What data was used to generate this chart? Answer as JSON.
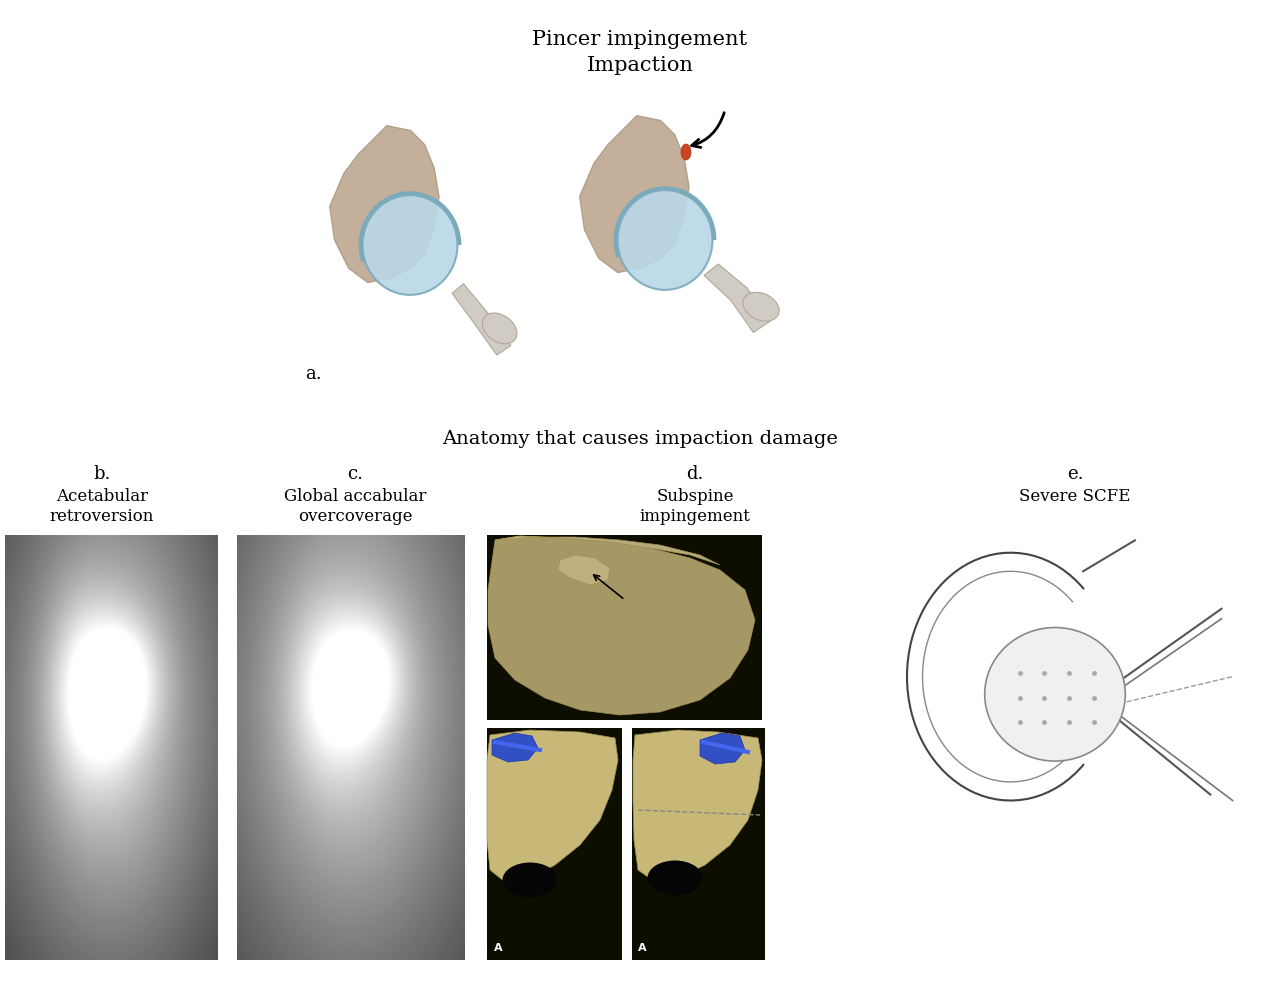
{
  "title_line1": "Pincer impingement",
  "title_line2": "Impaction",
  "subtitle": "Anatomy that causes impaction damage",
  "label_a": "a.",
  "label_b": "b.",
  "label_c": "c.",
  "label_d": "d.",
  "label_e": "e.",
  "text_b1": "Acetabular",
  "text_b2": "retroversion",
  "text_c1": "Global accabular",
  "text_c2": "overcoverage",
  "text_d1": "Subspine",
  "text_d2": "impingement",
  "text_e1": "Severe SCFE",
  "bg_color": "#ffffff",
  "tan_color": "#c4b09a",
  "tan_dark": "#b0a08a",
  "light_blue": "#b8d8e8",
  "blue_rim": "#7aaabb",
  "light_gray": "#e0ddd8",
  "gray_bone": "#d0ccc4",
  "red_orange": "#cc4422",
  "font_size_title": 15,
  "font_size_subtitle": 14,
  "font_size_label": 13,
  "font_size_sublabel": 12
}
